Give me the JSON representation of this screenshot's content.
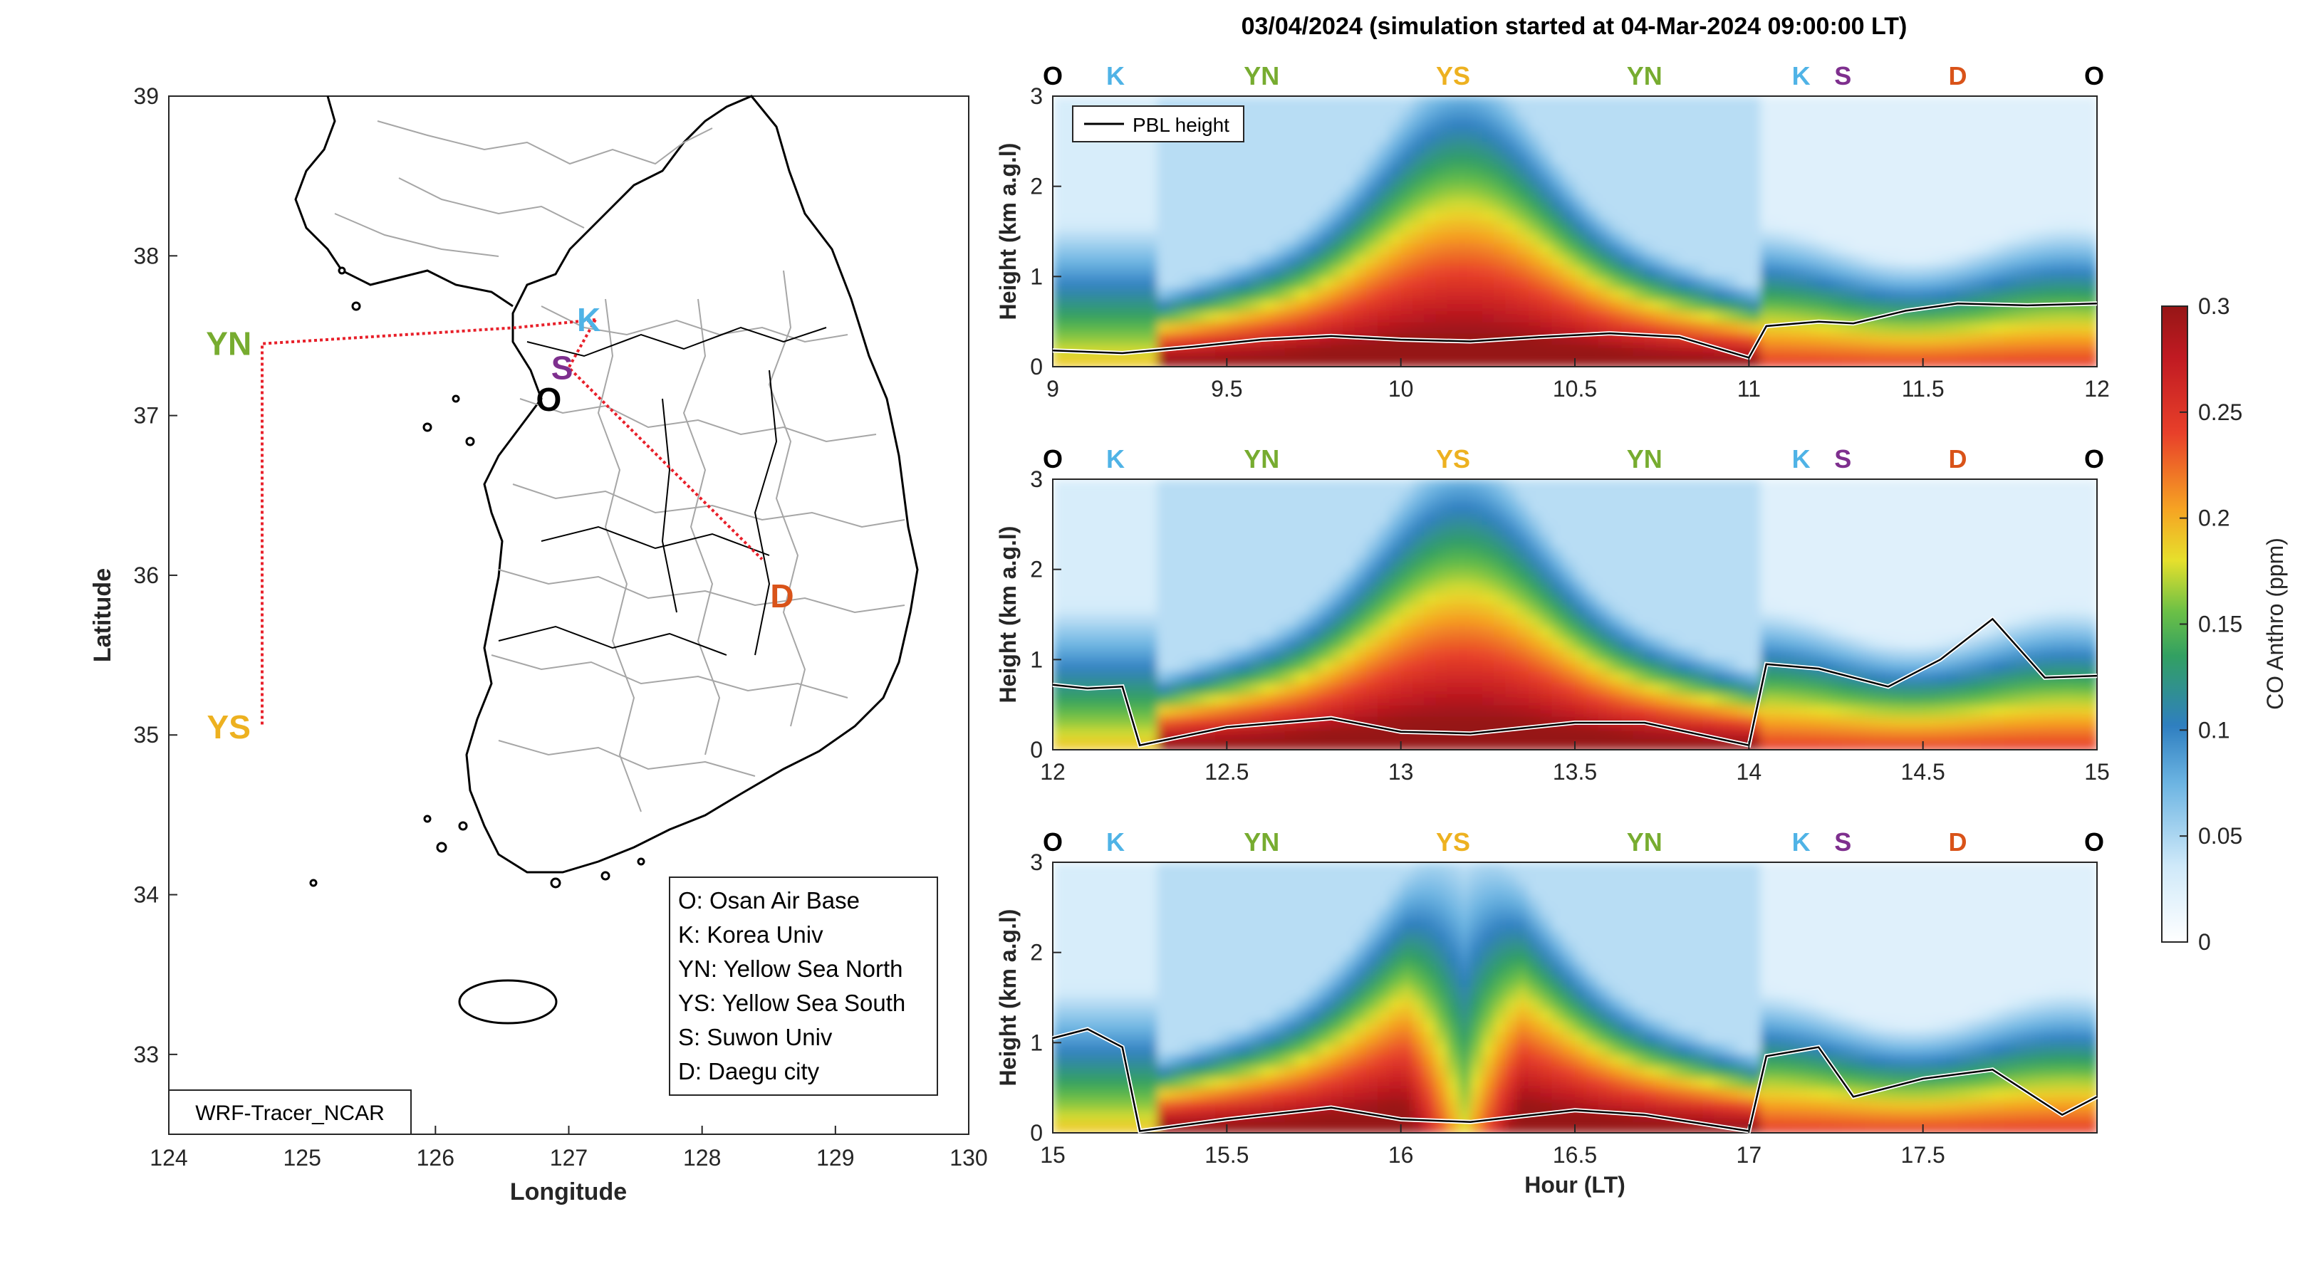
{
  "title": "03/04/2024 (simulation started at 04-Mar-2024 09:00:00 LT)",
  "colors": {
    "O": "#000000",
    "K": "#4fb3e6",
    "YN": "#77ac30",
    "YS": "#edb120",
    "S": "#7e2f8e",
    "D": "#d95319",
    "track": "#e8202a"
  },
  "map": {
    "xlabel": "Longitude",
    "ylabel": "Latitude",
    "xlim": [
      124,
      130
    ],
    "ylim": [
      32.5,
      39
    ],
    "xticks": [
      "124",
      "125",
      "126",
      "127",
      "128",
      "129",
      "130"
    ],
    "yticks": [
      "33",
      "34",
      "35",
      "36",
      "37",
      "38",
      "39"
    ],
    "model_label": "WRF-Tracer_NCAR",
    "sites": [
      {
        "code": "O",
        "lon": 126.85,
        "lat": 37.1
      },
      {
        "code": "K",
        "lon": 127.15,
        "lat": 37.6
      },
      {
        "code": "S",
        "lon": 126.95,
        "lat": 37.3
      },
      {
        "code": "YN",
        "lon": 124.45,
        "lat": 37.45
      },
      {
        "code": "YS",
        "lon": 124.45,
        "lat": 35.05
      },
      {
        "code": "D",
        "lon": 128.6,
        "lat": 35.87
      }
    ],
    "route": [
      [
        127.2,
        37.6
      ],
      [
        126.6,
        37.55
      ],
      [
        124.7,
        37.45
      ],
      [
        124.7,
        35.05
      ]
    ],
    "route2": [
      [
        127.2,
        37.6
      ],
      [
        127.0,
        37.3
      ],
      [
        128.45,
        36.1
      ]
    ],
    "legend": [
      "O: Osan Air Base",
      "K: Korea Univ",
      "YN: Yellow Sea North",
      "YS: Yellow Sea South",
      "S: Suwon Univ",
      "D: Daegu city"
    ]
  },
  "chart_data": [
    {
      "type": "heatmap",
      "xlim": [
        9,
        12
      ],
      "ylim": [
        0,
        3
      ],
      "xticks": [
        "9",
        "9.5",
        "10",
        "10.5",
        "11",
        "11.5",
        "12"
      ],
      "yticks": [
        "0",
        "1",
        "2",
        "3"
      ],
      "ylabel": "Height (km a.g.l)",
      "xlabel": "",
      "legend": "PBL height",
      "sites_top": [
        {
          "code": "O",
          "x": 9.0
        },
        {
          "code": "K",
          "x": 9.18
        },
        {
          "code": "YN",
          "x": 9.6
        },
        {
          "code": "YS",
          "x": 10.15
        },
        {
          "code": "YN",
          "x": 10.7
        },
        {
          "code": "K",
          "x": 11.15
        },
        {
          "code": "S",
          "x": 11.27
        },
        {
          "code": "D",
          "x": 11.6
        },
        {
          "code": "O",
          "x": 12.0
        }
      ],
      "pbl": [
        [
          9.0,
          0.18
        ],
        [
          9.2,
          0.15
        ],
        [
          9.4,
          0.22
        ],
        [
          9.6,
          0.3
        ],
        [
          9.8,
          0.34
        ],
        [
          10.0,
          0.3
        ],
        [
          10.2,
          0.28
        ],
        [
          10.4,
          0.33
        ],
        [
          10.6,
          0.37
        ],
        [
          10.8,
          0.33
        ],
        [
          11.0,
          0.1
        ],
        [
          11.05,
          0.45
        ],
        [
          11.2,
          0.5
        ],
        [
          11.3,
          0.48
        ],
        [
          11.45,
          0.62
        ],
        [
          11.6,
          0.7
        ],
        [
          11.8,
          0.68
        ],
        [
          12.0,
          0.7
        ]
      ]
    },
    {
      "type": "heatmap",
      "xlim": [
        12,
        15
      ],
      "ylim": [
        0,
        3
      ],
      "xticks": [
        "12",
        "12.5",
        "13",
        "13.5",
        "14",
        "14.5",
        "15"
      ],
      "yticks": [
        "0",
        "1",
        "2",
        "3"
      ],
      "ylabel": "Height (km a.g.l)",
      "xlabel": "",
      "sites_top": [
        {
          "code": "O",
          "x": 12.0
        },
        {
          "code": "K",
          "x": 12.18
        },
        {
          "code": "YN",
          "x": 12.6
        },
        {
          "code": "YS",
          "x": 13.15
        },
        {
          "code": "YN",
          "x": 13.7
        },
        {
          "code": "K",
          "x": 14.15
        },
        {
          "code": "S",
          "x": 14.27
        },
        {
          "code": "D",
          "x": 14.6
        },
        {
          "code": "O",
          "x": 15.0
        }
      ],
      "pbl": [
        [
          12.0,
          0.72
        ],
        [
          12.1,
          0.68
        ],
        [
          12.2,
          0.7
        ],
        [
          12.25,
          0.05
        ],
        [
          12.5,
          0.25
        ],
        [
          12.8,
          0.35
        ],
        [
          13.0,
          0.2
        ],
        [
          13.2,
          0.18
        ],
        [
          13.5,
          0.3
        ],
        [
          13.7,
          0.3
        ],
        [
          14.0,
          0.05
        ],
        [
          14.05,
          0.95
        ],
        [
          14.2,
          0.9
        ],
        [
          14.4,
          0.7
        ],
        [
          14.55,
          1.0
        ],
        [
          14.7,
          1.45
        ],
        [
          14.85,
          0.8
        ],
        [
          15.0,
          0.82
        ]
      ]
    },
    {
      "type": "heatmap",
      "xlim": [
        15,
        18
      ],
      "ylim": [
        0,
        3
      ],
      "xticks": [
        "15",
        "15.5",
        "16",
        "16.5",
        "17",
        "17.5"
      ],
      "yticks": [
        "0",
        "1",
        "2",
        "3"
      ],
      "ylabel": "Height (km a.g.l)",
      "xlabel": "Hour (LT)",
      "sites_top": [
        {
          "code": "O",
          "x": 15.0
        },
        {
          "code": "K",
          "x": 15.18
        },
        {
          "code": "YN",
          "x": 15.6
        },
        {
          "code": "YS",
          "x": 16.15
        },
        {
          "code": "YN",
          "x": 16.7
        },
        {
          "code": "K",
          "x": 17.15
        },
        {
          "code": "S",
          "x": 17.27
        },
        {
          "code": "D",
          "x": 17.6
        },
        {
          "code": "O",
          "x": 18.0
        }
      ],
      "pbl": [
        [
          15.0,
          1.05
        ],
        [
          15.1,
          1.15
        ],
        [
          15.2,
          0.95
        ],
        [
          15.25,
          0.02
        ],
        [
          15.5,
          0.15
        ],
        [
          15.8,
          0.28
        ],
        [
          16.0,
          0.15
        ],
        [
          16.2,
          0.12
        ],
        [
          16.5,
          0.25
        ],
        [
          16.7,
          0.2
        ],
        [
          17.0,
          0.02
        ],
        [
          17.05,
          0.85
        ],
        [
          17.2,
          0.95
        ],
        [
          17.3,
          0.4
        ],
        [
          17.5,
          0.6
        ],
        [
          17.7,
          0.7
        ],
        [
          17.9,
          0.2
        ],
        [
          18.0,
          0.4
        ]
      ]
    }
  ],
  "colorbar": {
    "label": "CO Anthro (ppm)",
    "range": [
      0,
      0.3
    ],
    "ticks": [
      "0",
      "0.05",
      "0.1",
      "0.15",
      "0.2",
      "0.25",
      "0.3"
    ]
  }
}
